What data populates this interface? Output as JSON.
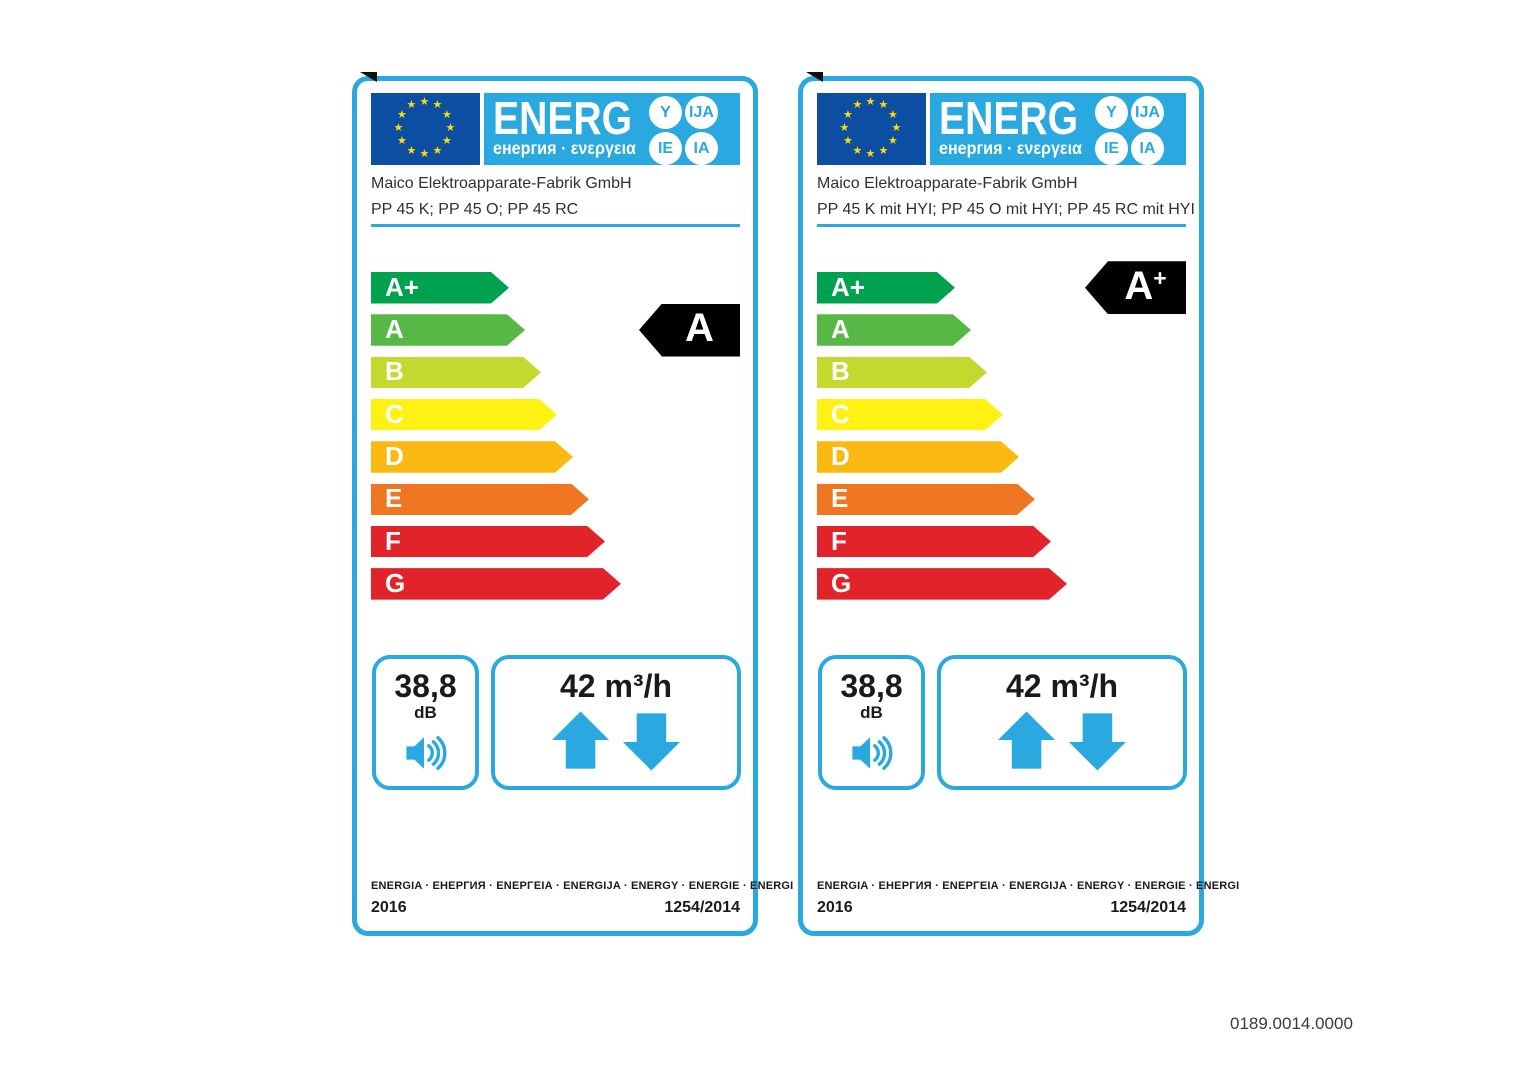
{
  "page": {
    "code": "0189.0014.0000"
  },
  "theme": {
    "blue": "#29A9E0",
    "flag_blue": "#0B4EA2",
    "star_yellow": "#FFDD00",
    "arrow_black": "#000000",
    "text_black": "#1A1A1A"
  },
  "header": {
    "brand": "ENERG",
    "subtitle": "енергия · ενεργεια",
    "badges": [
      "Y",
      "IJA",
      "IE",
      "IA"
    ]
  },
  "energy_scale": [
    {
      "label": "A+",
      "color": "#00A24F"
    },
    {
      "label": "A",
      "color": "#57B846"
    },
    {
      "label": "B",
      "color": "#C4D92E"
    },
    {
      "label": "C",
      "color": "#FFF212"
    },
    {
      "label": "D",
      "color": "#FBB912"
    },
    {
      "label": "E",
      "color": "#F07622"
    },
    {
      "label": "F",
      "color": "#E2232A"
    },
    {
      "label": "G",
      "color": "#E2232A"
    }
  ],
  "labels": [
    {
      "manufacturer": "Maico Elektroapparate-Fabrik GmbH",
      "model": "PP 45 K; PP 45 O; PP 45 RC",
      "rating": {
        "letter": "A",
        "plus": "",
        "row_index": 1
      },
      "noise": {
        "value": "38,8",
        "unit": "dB"
      },
      "airflow": {
        "value": "42 m³/h"
      },
      "footer_languages": "ENERGIA · ЕНЕРГИЯ · ΕΝΕΡΓΕΙΑ · ENERGIJA · ENERGY · ENERGIE · ENERGI",
      "year": "2016",
      "regulation": "1254/2014"
    },
    {
      "manufacturer": "Maico Elektroapparate-Fabrik GmbH",
      "model": "PP 45 K mit HYI; PP 45 O mit HYI; PP 45 RC mit HYI",
      "rating": {
        "letter": "A",
        "plus": "+",
        "row_index": 0
      },
      "noise": {
        "value": "38,8",
        "unit": "dB"
      },
      "airflow": {
        "value": "42 m³/h"
      },
      "footer_languages": "ENERGIA · ЕНЕРГИЯ · ΕΝΕΡΓΕΙΑ · ENERGIJA · ENERGY · ENERGIE · ENERGI",
      "year": "2016",
      "regulation": "1254/2014"
    }
  ]
}
